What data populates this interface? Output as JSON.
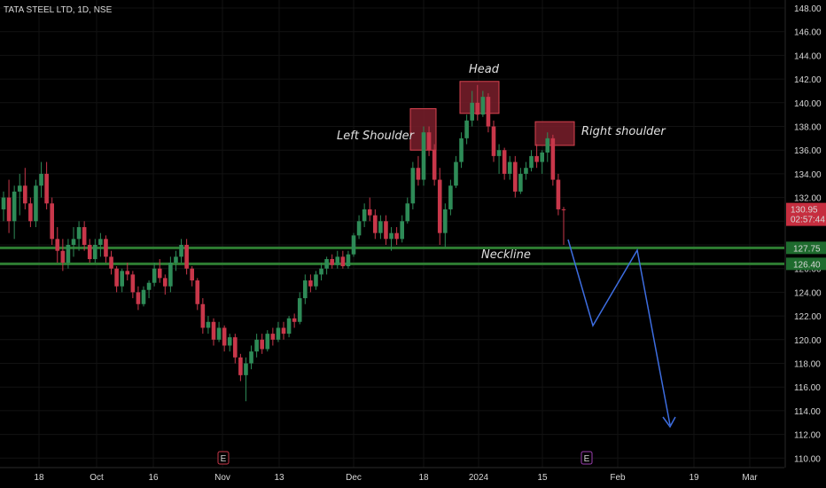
{
  "header": {
    "symbol_label": "TATA STEEL LTD, 1D, NSE"
  },
  "colors": {
    "background": "#000000",
    "grid": "#121212",
    "up": "#2e8b57",
    "down": "#c8374a",
    "neckline": "#2e7d32",
    "projection": "#3d6de0",
    "box_fill": "#7a1f2b",
    "box_stroke": "#d9434f"
  },
  "chart_data": {
    "type": "candlestick",
    "title": "",
    "xlabel": "",
    "ylabel": "",
    "ylim": [
      109,
      149
    ],
    "y_ticks": [
      "110.00",
      "112.00",
      "114.00",
      "116.00",
      "118.00",
      "120.00",
      "122.00",
      "124.00",
      "126.00",
      "128.00",
      "130.00",
      "132.00",
      "134.00",
      "136.00",
      "138.00",
      "140.00",
      "142.00",
      "144.00",
      "146.00",
      "148.00"
    ],
    "x_ticks": [
      "18",
      "Oct",
      "16",
      "Nov",
      "13",
      "Dec",
      "18",
      "2024",
      "15",
      "Feb",
      "19",
      "Mar"
    ],
    "last_price": "130.95",
    "countdown": "02:57:44",
    "levels": [
      {
        "label": "127.75",
        "value": 127.75
      },
      {
        "label": "126.40",
        "value": 126.4
      }
    ],
    "annotations": {
      "head": "Head",
      "left_shoulder": "Left Shoulder",
      "right_shoulder": "Right shoulder",
      "neckline": "Neckline"
    },
    "event_markers": [
      "E",
      "E"
    ],
    "candles": [
      [
        131,
        132.5,
        130,
        132
      ],
      [
        132,
        133.5,
        129,
        130
      ],
      [
        130,
        133,
        128.5,
        132.5
      ],
      [
        132.5,
        134,
        130.5,
        133
      ],
      [
        133,
        134.5,
        131,
        131.5
      ],
      [
        131.5,
        132,
        129.5,
        130
      ],
      [
        130,
        133.5,
        129.5,
        133
      ],
      [
        133,
        135,
        132,
        134
      ],
      [
        134,
        135,
        131,
        131.5
      ],
      [
        131.5,
        132,
        128,
        128.5
      ],
      [
        128.5,
        129.5,
        126.5,
        127.5
      ],
      [
        127.5,
        128.5,
        125.8,
        126.5
      ],
      [
        126.5,
        128.5,
        126,
        128
      ],
      [
        128,
        129.5,
        127,
        128.5
      ],
      [
        128.5,
        130,
        127.5,
        129.5
      ],
      [
        129.5,
        130,
        127.5,
        128
      ],
      [
        128,
        128.5,
        126.5,
        126.8
      ],
      [
        126.8,
        128.5,
        126.5,
        128
      ],
      [
        128,
        129,
        127,
        128.5
      ],
      [
        128.5,
        128.8,
        126.5,
        127
      ],
      [
        127,
        127.5,
        125.5,
        126
      ],
      [
        126,
        126.2,
        124,
        124.5
      ],
      [
        124.5,
        126,
        124,
        125.8
      ],
      [
        125.8,
        126.5,
        125,
        125.5
      ],
      [
        125.5,
        125.8,
        123.5,
        124
      ],
      [
        124,
        124.5,
        122.5,
        123
      ],
      [
        123,
        124.5,
        122.8,
        124.2
      ],
      [
        124.2,
        125,
        123.5,
        124.8
      ],
      [
        124.8,
        126.5,
        124.5,
        126
      ],
      [
        126,
        126.8,
        124.8,
        125.2
      ],
      [
        125.2,
        125.5,
        123.8,
        124.5
      ],
      [
        124.5,
        127,
        124,
        126.5
      ],
      [
        126.5,
        127.5,
        125.8,
        127
      ],
      [
        127,
        128.5,
        126.5,
        128
      ],
      [
        128,
        128.5,
        125.5,
        126
      ],
      [
        126,
        126.2,
        124.5,
        125
      ],
      [
        125,
        125.2,
        122.5,
        123
      ],
      [
        123,
        123.5,
        120.5,
        121
      ],
      [
        121,
        122,
        120.5,
        121.5
      ],
      [
        121.5,
        121.8,
        119.5,
        120
      ],
      [
        120,
        121.5,
        119.8,
        121
      ],
      [
        121,
        121.2,
        119,
        119.5
      ],
      [
        119.5,
        120.5,
        119,
        120.2
      ],
      [
        120.2,
        120.5,
        118,
        118.5
      ],
      [
        118.5,
        118.8,
        116.5,
        117
      ],
      [
        117,
        118.5,
        114.8,
        118
      ],
      [
        118,
        119.5,
        117.5,
        119
      ],
      [
        119,
        120.5,
        118.5,
        120
      ],
      [
        120,
        120.5,
        118.8,
        119.2
      ],
      [
        119.2,
        120.8,
        119,
        120.5
      ],
      [
        120.5,
        121,
        119.5,
        120
      ],
      [
        120,
        121.5,
        119.8,
        121
      ],
      [
        121,
        121.5,
        120,
        120.5
      ],
      [
        120.5,
        122,
        120.2,
        121.8
      ],
      [
        121.8,
        122.2,
        121,
        121.5
      ],
      [
        121.5,
        124,
        121.3,
        123.5
      ],
      [
        123.5,
        125.5,
        123,
        125
      ],
      [
        125,
        125.5,
        124,
        124.5
      ],
      [
        124.5,
        125.8,
        124.2,
        125.5
      ],
      [
        125.5,
        126.5,
        125,
        126
      ],
      [
        126,
        127,
        125.5,
        126.8
      ],
      [
        126.8,
        127.2,
        126,
        126.3
      ],
      [
        126.3,
        127.5,
        126,
        127
      ],
      [
        127,
        127.5,
        126,
        126.2
      ],
      [
        126.2,
        127.5,
        126,
        127.2
      ],
      [
        127.2,
        129,
        127,
        128.8
      ],
      [
        128.8,
        130.5,
        128.5,
        130
      ],
      [
        130,
        131.5,
        129.5,
        131
      ],
      [
        131,
        132,
        130,
        130.5
      ],
      [
        130.5,
        131,
        128.5,
        129
      ],
      [
        129,
        130.5,
        128.5,
        130
      ],
      [
        130,
        130.5,
        128,
        128.5
      ],
      [
        128.5,
        129.5,
        127.5,
        129
      ],
      [
        129,
        129.5,
        128,
        128.5
      ],
      [
        128.5,
        130.5,
        128.2,
        130
      ],
      [
        130,
        132,
        129.8,
        131.5
      ],
      [
        131.5,
        135,
        131,
        134.5
      ],
      [
        134.5,
        135.5,
        133,
        133.5
      ],
      [
        133.5,
        138,
        133,
        137.5
      ],
      [
        137.5,
        138,
        135.5,
        136
      ],
      [
        136,
        136.5,
        133,
        133.5
      ],
      [
        133.5,
        134.5,
        128,
        129
      ],
      [
        129,
        131.5,
        127.8,
        131
      ],
      [
        131,
        133.5,
        130.5,
        133
      ],
      [
        133,
        135.5,
        132.8,
        135
      ],
      [
        135,
        137.5,
        134.5,
        137
      ],
      [
        137,
        139,
        136.5,
        138.5
      ],
      [
        138.5,
        141,
        138,
        140
      ],
      [
        140,
        141.5,
        138.5,
        139
      ],
      [
        139,
        141,
        138.8,
        140.5
      ],
      [
        140.5,
        140.8,
        137.5,
        138
      ],
      [
        138,
        138.5,
        135,
        135.5
      ],
      [
        135.5,
        136.5,
        134,
        136
      ],
      [
        136,
        136.2,
        133.5,
        134
      ],
      [
        134,
        135.5,
        133.5,
        135
      ],
      [
        135,
        135.5,
        132,
        132.5
      ],
      [
        132.5,
        134.5,
        132.3,
        134
      ],
      [
        134,
        135,
        133.5,
        134.5
      ],
      [
        134.5,
        136,
        134.2,
        135.5
      ],
      [
        135.5,
        136.5,
        134.5,
        135
      ],
      [
        135,
        136,
        134,
        135.8
      ],
      [
        135.8,
        137.5,
        135,
        137
      ],
      [
        137,
        137.3,
        133,
        133.5
      ],
      [
        133.5,
        134,
        130.5,
        131
      ],
      [
        131,
        131.2,
        128,
        130.95
      ]
    ]
  }
}
